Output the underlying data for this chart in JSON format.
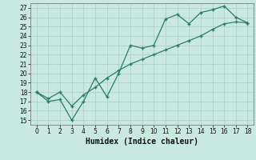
{
  "xlabel": "Humidex (Indice chaleur)",
  "x": [
    0,
    1,
    2,
    3,
    4,
    5,
    6,
    7,
    8,
    9,
    10,
    11,
    12,
    13,
    14,
    15,
    16,
    17,
    18
  ],
  "line1_y": [
    18,
    17,
    17.2,
    15,
    17,
    19.5,
    17.5,
    20,
    23,
    22.7,
    23,
    25.8,
    26.3,
    25.3,
    26.5,
    26.8,
    27.2,
    26,
    25.4
  ],
  "line2_y": [
    18,
    17.3,
    18,
    16.5,
    17.7,
    18.5,
    19.5,
    20.3,
    21,
    21.5,
    22,
    22.5,
    23,
    23.5,
    24,
    24.7,
    25.3,
    25.5,
    25.4
  ],
  "line_color": "#2a7d6e",
  "bg_color": "#c8e8e0",
  "grid_color": "#aeccc6",
  "ylim": [
    14.5,
    27.5
  ],
  "xlim": [
    -0.5,
    18.5
  ],
  "yticks": [
    15,
    16,
    17,
    18,
    19,
    20,
    21,
    22,
    23,
    24,
    25,
    26,
    27
  ],
  "xticks": [
    0,
    1,
    2,
    3,
    4,
    5,
    6,
    7,
    8,
    9,
    10,
    11,
    12,
    13,
    14,
    15,
    16,
    17,
    18
  ],
  "tick_fontsize": 5.5,
  "xlabel_fontsize": 7
}
